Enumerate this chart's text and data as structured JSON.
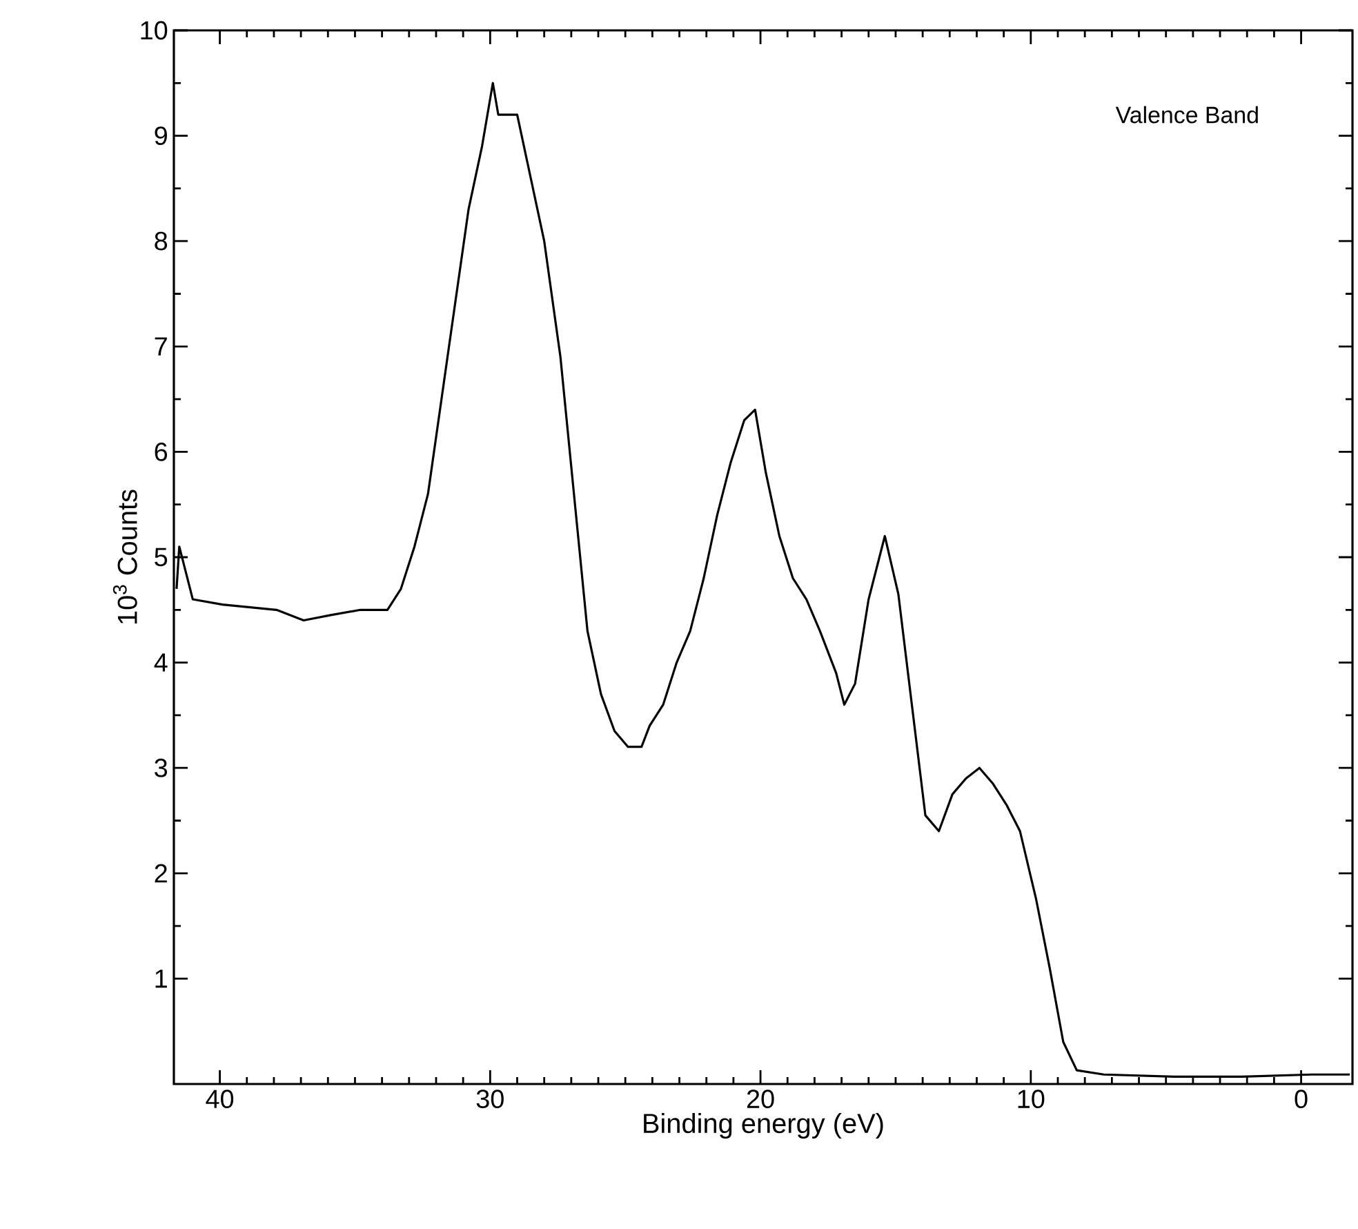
{
  "chart_data": {
    "type": "line",
    "xlabel": "Binding energy (eV)",
    "ylabel": "10$^{3}$ Counts",
    "annotations": [
      "Valence Band"
    ],
    "xlim": [
      41.7,
      -1.9
    ],
    "xticks": [
      40,
      30,
      20,
      10,
      0
    ],
    "ylim": [
      0,
      10
    ],
    "yticks": [
      1,
      2,
      3,
      4,
      5,
      6,
      7,
      8,
      9,
      10
    ],
    "grid": false,
    "series": [
      {
        "color": "#000000",
        "x": [
          41.6,
          41.5,
          41.0,
          39.9,
          37.9,
          36.9,
          35.9,
          34.8,
          33.8,
          33.3,
          32.8,
          32.3,
          31.8,
          31.3,
          30.8,
          30.3,
          29.9,
          29.7,
          29.0,
          28.5,
          28.0,
          27.4,
          26.9,
          26.4,
          25.9,
          25.4,
          24.9,
          24.4,
          24.1,
          23.6,
          23.1,
          22.6,
          22.1,
          21.6,
          21.1,
          20.6,
          20.2,
          19.8,
          19.3,
          18.8,
          18.3,
          17.8,
          17.2,
          16.9,
          16.5,
          16.0,
          15.6,
          15.4,
          14.9,
          14.4,
          13.9,
          13.4,
          12.9,
          12.4,
          11.9,
          11.4,
          10.9,
          10.4,
          9.8,
          9.3,
          8.8,
          8.3,
          7.3,
          4.7,
          2.2,
          -0.4,
          -1.8
        ],
        "values": [
          4.7,
          5.1,
          4.6,
          4.55,
          4.5,
          4.4,
          4.45,
          4.5,
          4.5,
          4.7,
          5.1,
          5.6,
          6.5,
          7.4,
          8.3,
          8.9,
          9.5,
          9.2,
          9.2,
          8.6,
          8.0,
          6.9,
          5.6,
          4.3,
          3.7,
          3.35,
          3.2,
          3.2,
          3.4,
          3.6,
          4.0,
          4.3,
          4.8,
          5.4,
          5.9,
          6.3,
          6.4,
          5.8,
          5.2,
          4.8,
          4.6,
          4.3,
          3.9,
          3.6,
          3.8,
          4.6,
          5.0,
          5.2,
          4.65,
          3.6,
          2.55,
          2.4,
          2.75,
          2.9,
          3.0,
          2.85,
          2.65,
          2.4,
          1.75,
          1.1,
          0.4,
          0.13,
          0.09,
          0.07,
          0.07,
          0.09,
          0.09
        ]
      }
    ]
  }
}
